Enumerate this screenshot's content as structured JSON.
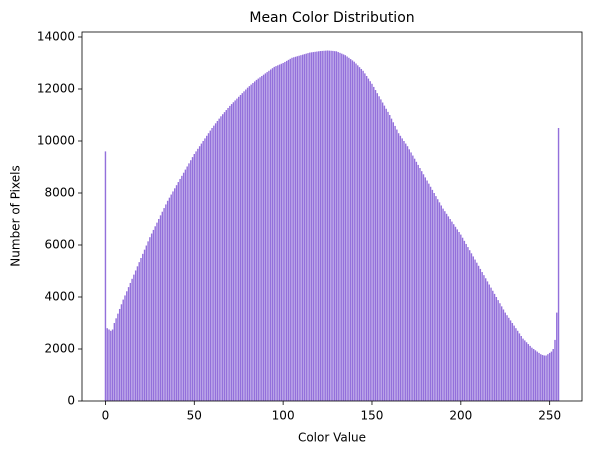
{
  "chart_data": {
    "type": "bar",
    "title": "Mean Color Distribution",
    "x_label": "Color Value",
    "y_label": "Number of Pixels",
    "color": "#9370db",
    "x": [
      0,
      1,
      2,
      3,
      4,
      5,
      6,
      7,
      8,
      9,
      10,
      11,
      12,
      13,
      14,
      15,
      16,
      17,
      18,
      19,
      20,
      21,
      22,
      23,
      24,
      25,
      26,
      27,
      28,
      29,
      30,
      31,
      32,
      33,
      34,
      35,
      36,
      37,
      38,
      39,
      40,
      41,
      42,
      43,
      44,
      45,
      46,
      47,
      48,
      49,
      50,
      51,
      52,
      53,
      54,
      55,
      56,
      57,
      58,
      59,
      60,
      61,
      62,
      63,
      64,
      65,
      66,
      67,
      68,
      69,
      70,
      71,
      72,
      73,
      74,
      75,
      76,
      77,
      78,
      79,
      80,
      81,
      82,
      83,
      84,
      85,
      86,
      87,
      88,
      89,
      90,
      91,
      92,
      93,
      94,
      95,
      96,
      97,
      98,
      99,
      100,
      101,
      102,
      103,
      104,
      105,
      106,
      107,
      108,
      109,
      110,
      111,
      112,
      113,
      114,
      115,
      116,
      117,
      118,
      119,
      120,
      121,
      122,
      123,
      124,
      125,
      126,
      127,
      128,
      129,
      130,
      131,
      132,
      133,
      134,
      135,
      136,
      137,
      138,
      139,
      140,
      141,
      142,
      143,
      144,
      145,
      146,
      147,
      148,
      149,
      150,
      151,
      152,
      153,
      154,
      155,
      156,
      157,
      158,
      159,
      160,
      161,
      162,
      163,
      164,
      165,
      166,
      167,
      168,
      169,
      170,
      171,
      172,
      173,
      174,
      175,
      176,
      177,
      178,
      179,
      180,
      181,
      182,
      183,
      184,
      185,
      186,
      187,
      188,
      189,
      190,
      191,
      192,
      193,
      194,
      195,
      196,
      197,
      198,
      199,
      200,
      201,
      202,
      203,
      204,
      205,
      206,
      207,
      208,
      209,
      210,
      211,
      212,
      213,
      214,
      215,
      216,
      217,
      218,
      219,
      220,
      221,
      222,
      223,
      224,
      225,
      226,
      227,
      228,
      229,
      230,
      231,
      232,
      233,
      234,
      235,
      236,
      237,
      238,
      239,
      240,
      241,
      242,
      243,
      244,
      245,
      246,
      247,
      248,
      249,
      250,
      251,
      252,
      253,
      254,
      255
    ],
    "values": [
      9600,
      2800,
      2750,
      2700,
      2750,
      3000,
      3180,
      3360,
      3540,
      3720,
      3900,
      4060,
      4220,
      4380,
      4540,
      4700,
      4860,
      5020,
      5180,
      5340,
      5500,
      5660,
      5820,
      5980,
      6140,
      6300,
      6440,
      6580,
      6720,
      6860,
      7000,
      7140,
      7280,
      7420,
      7560,
      7700,
      7820,
      7940,
      8060,
      8180,
      8300,
      8420,
      8540,
      8660,
      8780,
      8900,
      9020,
      9140,
      9260,
      9380,
      9500,
      9600,
      9700,
      9800,
      9900,
      10000,
      10100,
      10200,
      10300,
      10400,
      10500,
      10590,
      10680,
      10770,
      10860,
      10950,
      11030,
      11110,
      11190,
      11270,
      11350,
      11420,
      11490,
      11560,
      11630,
      11700,
      11770,
      11840,
      11910,
      11980,
      12050,
      12110,
      12170,
      12230,
      12290,
      12350,
      12400,
      12450,
      12500,
      12550,
      12600,
      12650,
      12700,
      12750,
      12800,
      12850,
      12880,
      12910,
      12940,
      12970,
      13000,
      13040,
      13080,
      13120,
      13160,
      13200,
      13220,
      13240,
      13260,
      13280,
      13300,
      13320,
      13340,
      13360,
      13380,
      13400,
      13410,
      13420,
      13430,
      13440,
      13450,
      13460,
      13465,
      13470,
      13475,
      13480,
      13475,
      13470,
      13465,
      13455,
      13450,
      13420,
      13390,
      13360,
      13330,
      13300,
      13250,
      13200,
      13150,
      13100,
      13050,
      12980,
      12910,
      12840,
      12770,
      12700,
      12600,
      12500,
      12400,
      12300,
      12200,
      12080,
      11960,
      11840,
      11720,
      11600,
      11480,
      11360,
      11240,
      11120,
      11000,
      10860,
      10720,
      10580,
      10440,
      10300,
      10200,
      10100,
      10000,
      9900,
      9800,
      9680,
      9560,
      9440,
      9320,
      9200,
      9080,
      8960,
      8840,
      8720,
      8600,
      8480,
      8360,
      8240,
      8120,
      8000,
      7880,
      7760,
      7640,
      7520,
      7400,
      7300,
      7200,
      7100,
      7000,
      6900,
      6800,
      6700,
      6600,
      6500,
      6400,
      6280,
      6160,
      6040,
      5920,
      5800,
      5680,
      5560,
      5440,
      5320,
      5200,
      5080,
      4960,
      4840,
      4720,
      4600,
      4480,
      4360,
      4240,
      4120,
      4000,
      3880,
      3760,
      3640,
      3520,
      3400,
      3300,
      3200,
      3100,
      3000,
      2900,
      2800,
      2700,
      2600,
      2500,
      2400,
      2330,
      2260,
      2190,
      2120,
      2050,
      2000,
      1950,
      1900,
      1850,
      1800,
      1770,
      1750,
      1750,
      1800,
      1850,
      1900,
      2000,
      2350,
      3400,
      10500
    ],
    "xlim": [
      -13.2,
      268.2
    ],
    "ylim": [
      0,
      14192
    ],
    "xticks": [
      0,
      50,
      100,
      150,
      200,
      250
    ],
    "yticks": [
      0,
      2000,
      4000,
      6000,
      8000,
      10000,
      12000,
      14000
    ]
  }
}
